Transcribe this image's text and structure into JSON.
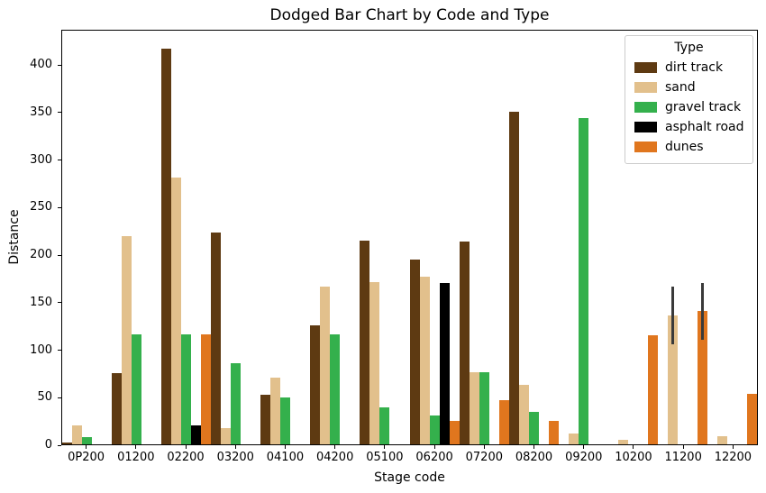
{
  "chart_data": {
    "type": "bar",
    "title": "Dodged Bar Chart by Code and Type",
    "xlabel": "Stage code",
    "ylabel": "Distance",
    "ylim": [
      0,
      437
    ],
    "yticks": [
      0,
      50,
      100,
      150,
      200,
      250,
      300,
      350,
      400
    ],
    "grid": false,
    "legend": {
      "title": "Type",
      "position": "upper right"
    },
    "categories": [
      "0P200",
      "01200",
      "02200",
      "03200",
      "04100",
      "04200",
      "05100",
      "06200",
      "07200",
      "08200",
      "09200",
      "10200",
      "11200",
      "12200"
    ],
    "series": [
      {
        "name": "dirt track",
        "color": "#5E3A12",
        "values": [
          2,
          75,
          416,
          223,
          52,
          125,
          214,
          194,
          213,
          350,
          0,
          0,
          0,
          0
        ]
      },
      {
        "name": "sand",
        "color": "#E2C08C",
        "values": [
          20,
          219,
          281,
          17,
          70,
          166,
          171,
          176,
          76,
          63,
          11,
          5,
          136,
          9
        ]
      },
      {
        "name": "gravel track",
        "color": "#34B04C",
        "values": [
          8,
          116,
          116,
          85,
          49,
          116,
          39,
          30,
          76,
          34,
          343,
          0,
          0,
          0
        ]
      },
      {
        "name": "asphalt road",
        "color": "#000000",
        "values": [
          0,
          0,
          20,
          0,
          0,
          0,
          0,
          170,
          0,
          0,
          0,
          0,
          0,
          0
        ]
      },
      {
        "name": "dunes",
        "color": "#E0761E",
        "values": [
          0,
          0,
          116,
          0,
          0,
          0,
          0,
          25,
          46,
          25,
          0,
          115,
          140,
          53
        ]
      }
    ],
    "error_bars": [
      {
        "series": "sand",
        "category": "11200",
        "low": 105,
        "high": 166
      },
      {
        "series": "dunes",
        "category": "11200",
        "low": 110,
        "high": 170
      }
    ],
    "error_bar_color": "#3A3A3A"
  }
}
